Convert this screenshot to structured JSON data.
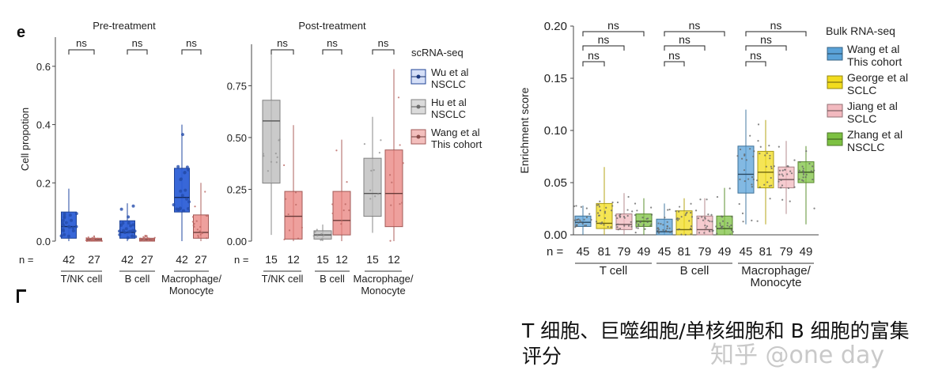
{
  "panel_label": "e",
  "caption": "T 细胞、巨噬细胞/单核细胞和 B 细胞的富集评分",
  "watermark": "知乎 @one day",
  "colors": {
    "wu": "#2d5fd6",
    "hu": "#b8b8b8",
    "wang_sc": "#e8807c",
    "wang_bulk": "#5aa2d8",
    "george": "#f2dc1e",
    "jiang": "#f2b9bf",
    "zhang": "#7dc142"
  },
  "chart_data": [
    {
      "type": "box",
      "title": "Pre-treatment",
      "ylabel": "Cell propotion",
      "ylim": [
        0,
        0.7
      ],
      "yticks": [
        "0.0",
        "0.2",
        "0.4",
        "0.6"
      ],
      "n_label": "n =",
      "groups": [
        {
          "label": "T/NK cell",
          "sig": "ns",
          "n": [
            "42",
            "27"
          ]
        },
        {
          "label": "B cell",
          "sig": "ns",
          "n": [
            "42",
            "27"
          ]
        },
        {
          "label": "Macrophage/\nMonocyte",
          "sig": "ns",
          "n": [
            "42",
            "27"
          ]
        }
      ],
      "series": [
        {
          "name": "Wu et al NSCLC",
          "boxes": [
            [
              0,
              0.01,
              0.05,
              0.1,
              0.18
            ],
            [
              0,
              0.01,
              0.03,
              0.07,
              0.13
            ],
            [
              0,
              0.1,
              0.15,
              0.25,
              0.4
            ]
          ]
        },
        {
          "name": "Wang et al This cohort",
          "boxes": [
            [
              0,
              0.0,
              0.005,
              0.01,
              0.02
            ],
            [
              0,
              0.0,
              0.005,
              0.01,
              0.02
            ],
            [
              0,
              0.01,
              0.03,
              0.09,
              0.2
            ]
          ]
        }
      ]
    },
    {
      "type": "box",
      "title": "Post-treatment",
      "ylim": [
        0,
        0.95
      ],
      "yticks": [
        "0.00",
        "0.25",
        "0.50",
        "0.75"
      ],
      "n_label": "n =",
      "groups": [
        {
          "label": "T/NK cell",
          "sig": "ns",
          "n": [
            "15",
            "12"
          ]
        },
        {
          "label": "B cell",
          "sig": "ns",
          "n": [
            "15",
            "12"
          ]
        },
        {
          "label": "Macrophage/\nMonocyte",
          "sig": "ns",
          "n": [
            "15",
            "12"
          ]
        }
      ],
      "series": [
        {
          "name": "Hu et al NSCLC",
          "boxes": [
            [
              0.03,
              0.28,
              0.58,
              0.68,
              0.9
            ],
            [
              0,
              0.01,
              0.03,
              0.05,
              0.08
            ],
            [
              0.04,
              0.12,
              0.23,
              0.4,
              0.6
            ]
          ]
        },
        {
          "name": "Wang et al This cohort",
          "boxes": [
            [
              0,
              0.01,
              0.12,
              0.24,
              0.56
            ],
            [
              0,
              0.03,
              0.1,
              0.24,
              0.49
            ],
            [
              0,
              0.07,
              0.23,
              0.44,
              0.83
            ]
          ]
        }
      ],
      "legend": {
        "title": "scRNA-seq",
        "entries": [
          "Wu et al\nNSCLC",
          "Hu et al\nNSCLC",
          "Wang et al\nThis cohort"
        ]
      }
    },
    {
      "type": "box",
      "ylabel": "Enrichment score",
      "ylim": [
        0,
        0.2
      ],
      "yticks": [
        "0.00",
        "0.05",
        "0.10",
        "0.15",
        "0.20"
      ],
      "n_label": "n =",
      "groups": [
        {
          "label": "T cell",
          "n": [
            "45",
            "81",
            "79",
            "49"
          ]
        },
        {
          "label": "B cell",
          "n": [
            "45",
            "81",
            "79",
            "49"
          ]
        },
        {
          "label": "Macrophage/\nMonocyte",
          "n": [
            "45",
            "81",
            "79",
            "49"
          ]
        }
      ],
      "sig_brackets": [
        "ns",
        "ns",
        "ns"
      ],
      "series": [
        {
          "name": "Wang et al This cohort",
          "boxes": [
            [
              0,
              0.008,
              0.012,
              0.018,
              0.028
            ],
            [
              0,
              0.0,
              0.003,
              0.015,
              0.03
            ],
            [
              0.01,
              0.04,
              0.058,
              0.085,
              0.12
            ]
          ]
        },
        {
          "name": "George et al SCLC",
          "boxes": [
            [
              0,
              0.006,
              0.011,
              0.03,
              0.065
            ],
            [
              0,
              0.0,
              0.005,
              0.023,
              0.035
            ],
            [
              0.01,
              0.045,
              0.06,
              0.08,
              0.11
            ]
          ]
        },
        {
          "name": "Jiang et al SCLC",
          "boxes": [
            [
              0,
              0.005,
              0.01,
              0.02,
              0.04
            ],
            [
              0,
              0.0,
              0.005,
              0.018,
              0.035
            ],
            [
              0.02,
              0.045,
              0.053,
              0.065,
              0.09
            ]
          ]
        },
        {
          "name": "Zhang et al NSCLC",
          "boxes": [
            [
              0,
              0.008,
              0.013,
              0.02,
              0.035
            ],
            [
              0,
              0.0,
              0.006,
              0.018,
              0.045
            ],
            [
              0.01,
              0.05,
              0.06,
              0.07,
              0.085
            ]
          ]
        }
      ],
      "legend": {
        "title": "Bulk RNA-seq",
        "entries": [
          "Wang et al\nThis cohort",
          "George et al\nSCLC",
          "Jiang et al\nSCLC",
          "Zhang et al\nNSCLC"
        ]
      }
    }
  ]
}
